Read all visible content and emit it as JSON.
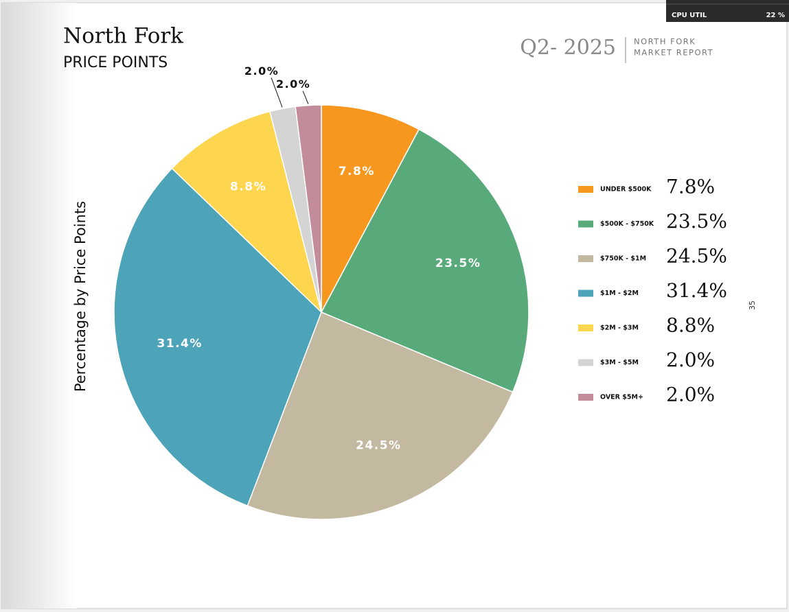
{
  "chart_data": {
    "type": "pie",
    "title": "North Fork",
    "subtitle": "PRICE POINTS",
    "y_label": "Percentage by Price Points",
    "categories": [
      "UNDER $500K",
      "$500K - $750K",
      "$750K - $1M",
      "$1M - $2M",
      "$2M - $3M",
      "$3M - $5M",
      "OVER $5M+"
    ],
    "values": [
      7.8,
      23.5,
      24.5,
      31.4,
      8.8,
      2.0,
      2.0
    ],
    "value_labels": [
      "7.8%",
      "23.5%",
      "24.5%",
      "31.4%",
      "8.8%",
      "2.0%",
      "2.0%"
    ],
    "colors": [
      "#f7971e",
      "#58aa7a",
      "#c3b8a0",
      "#4da3b8",
      "#fed54e",
      "#d4d4d4",
      "#c28c9b"
    ]
  },
  "header": {
    "period": "Q2- 2025",
    "report_line1": "NORTH FORK",
    "report_line2": "MARKET REPORT"
  },
  "page_number": "35",
  "overlay": {
    "label": "CPU UTIL",
    "value": "22 %"
  }
}
